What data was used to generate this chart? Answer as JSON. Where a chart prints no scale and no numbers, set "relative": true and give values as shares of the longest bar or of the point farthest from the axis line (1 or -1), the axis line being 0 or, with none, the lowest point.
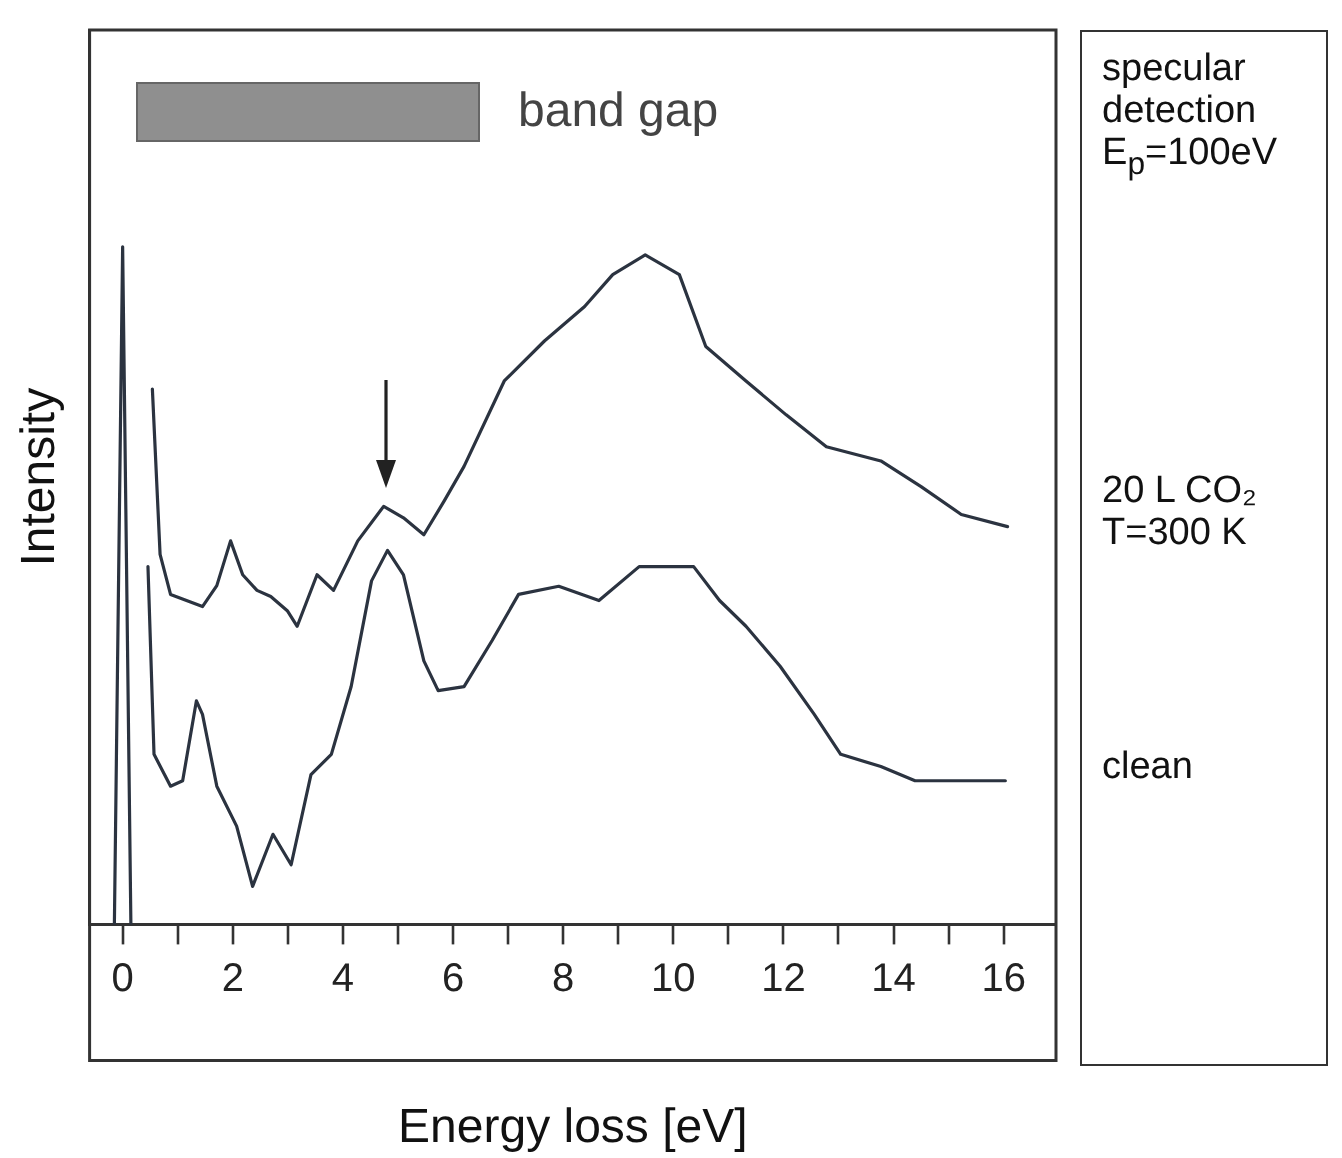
{
  "chart_data": {
    "type": "line",
    "xlabel": "Energy loss [eV]",
    "ylabel": "Intensity",
    "relative": true,
    "tick_labels": "x",
    "marker": "none",
    "line_style": "solid",
    "xlim": [
      -0.6,
      16.95
    ],
    "xticks": [
      0,
      {
        "value": 1,
        "label": null
      },
      2,
      {
        "value": 3,
        "label": null
      },
      4,
      {
        "value": 5,
        "label": null
      },
      6,
      {
        "value": 7,
        "label": null
      },
      8,
      {
        "value": 9,
        "label": null
      },
      10,
      {
        "value": 11,
        "label": null
      },
      12,
      {
        "value": 13,
        "label": null
      },
      14,
      {
        "value": 15,
        "label": null
      },
      16
    ],
    "annotations": [
      "band gap",
      "specular detection E$_{p}$=100eV"
    ],
    "series": [
      {
        "name": "20 L CO₂ T=300 K",
        "color": "#2b3340",
        "x": [
          0.54,
          0.68,
          0.87,
          1.16,
          1.45,
          1.71,
          1.96,
          2.18,
          2.44,
          2.69,
          2.99,
          3.17,
          3.53,
          3.83,
          4.27,
          4.74,
          5.1,
          5.47,
          5.84,
          6.2,
          6.93,
          7.66,
          8.39,
          8.9,
          9.49,
          10.11,
          10.59,
          11.32,
          12.05,
          12.78,
          13.77,
          14.5,
          15.23,
          16.07
        ],
        "values": [
          0.79,
          0.546,
          0.487,
          0.478,
          0.469,
          0.5,
          0.566,
          0.516,
          0.493,
          0.484,
          0.463,
          0.44,
          0.516,
          0.493,
          0.566,
          0.617,
          0.6,
          0.575,
          0.625,
          0.676,
          0.802,
          0.861,
          0.912,
          0.959,
          0.988,
          0.959,
          0.853,
          0.802,
          0.752,
          0.705,
          0.684,
          0.646,
          0.605,
          0.587
        ]
      },
      {
        "name": "clean",
        "color": "#2b3340",
        "x": [
          -0.15,
          0,
          0.15,
          0.3,
          0.46,
          0.57,
          0.87,
          1.09,
          1.34,
          1.45,
          1.71,
          2.07,
          2.36,
          2.73,
          3.06,
          3.42,
          3.79,
          4.15,
          4.52,
          4.81,
          5.1,
          5.47,
          5.73,
          6.2,
          6.71,
          7.19,
          7.92,
          8.65,
          9.38,
          10.37,
          10.84,
          11.32,
          11.94,
          12.56,
          13.04,
          13.77,
          14.39,
          14.97,
          16.03
        ],
        "values": [
          0,
          1,
          0,
          null,
          0.528,
          0.251,
          0.204,
          0.212,
          0.33,
          0.31,
          0.204,
          0.145,
          0.056,
          0.133,
          0.088,
          0.221,
          0.251,
          0.351,
          0.507,
          0.552,
          0.516,
          0.389,
          0.345,
          0.351,
          0.419,
          0.487,
          0.499,
          0.478,
          0.528,
          0.528,
          0.478,
          0.44,
          0.381,
          0.31,
          0.251,
          0.233,
          0.212,
          0.212,
          0.212
        ]
      }
    ]
  }
}
